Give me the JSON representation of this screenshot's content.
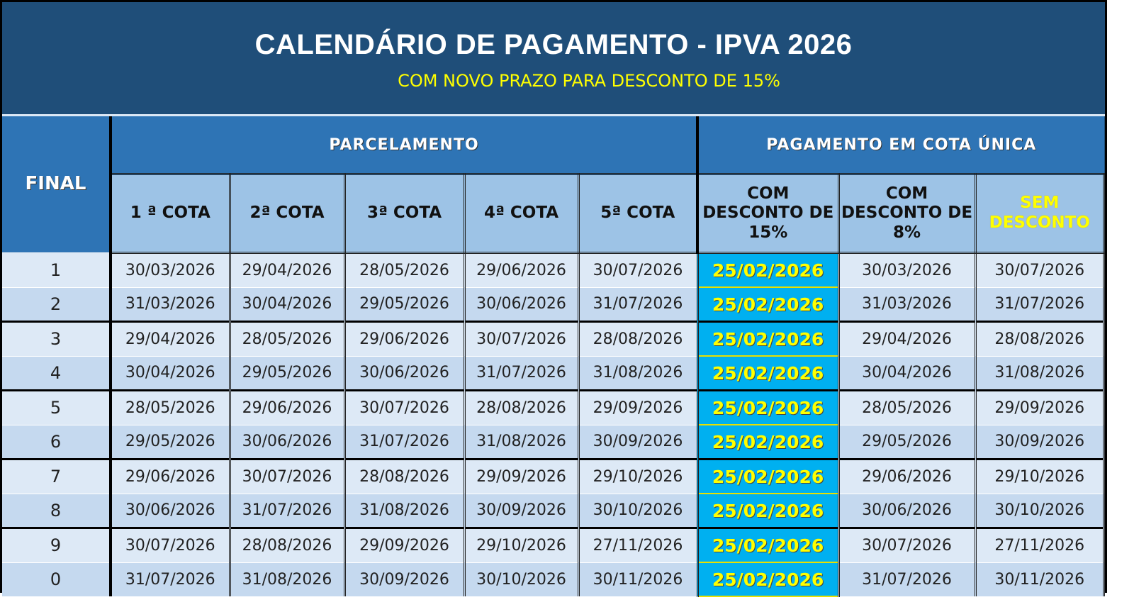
{
  "header": {
    "title": "CALENDÁRIO DE PAGAMENTO - IPVA 2026",
    "subtitle": "COM NOVO PRAZO PARA DESCONTO DE 15%"
  },
  "table": {
    "final_label": "FINAL",
    "group_parcelamento": "PARCELAMENTO",
    "group_cota_unica": "PAGAMENTO EM COTA ÚNICA",
    "columns": [
      "1 ª COTA",
      "2ª COTA",
      "3ª COTA",
      "4ª COTA",
      "5ª COTA",
      "COM DESCONTO DE 15%",
      "COM DESCONTO DE 8%",
      "SEM DESCONTO"
    ],
    "rows": [
      {
        "final": "1",
        "dates": [
          "30/03/2026",
          "29/04/2026",
          "28/05/2026",
          "29/06/2026",
          "30/07/2026",
          "25/02/2026",
          "30/03/2026",
          "30/07/2026"
        ]
      },
      {
        "final": "2",
        "dates": [
          "31/03/2026",
          "30/04/2026",
          "29/05/2026",
          "30/06/2026",
          "31/07/2026",
          "25/02/2026",
          "31/03/2026",
          "31/07/2026"
        ]
      },
      {
        "final": "3",
        "dates": [
          "29/04/2026",
          "28/05/2026",
          "29/06/2026",
          "30/07/2026",
          "28/08/2026",
          "25/02/2026",
          "29/04/2026",
          "28/08/2026"
        ]
      },
      {
        "final": "4",
        "dates": [
          "30/04/2026",
          "29/05/2026",
          "30/06/2026",
          "31/07/2026",
          "31/08/2026",
          "25/02/2026",
          "30/04/2026",
          "31/08/2026"
        ]
      },
      {
        "final": "5",
        "dates": [
          "28/05/2026",
          "29/06/2026",
          "30/07/2026",
          "28/08/2026",
          "29/09/2026",
          "25/02/2026",
          "28/05/2026",
          "29/09/2026"
        ]
      },
      {
        "final": "6",
        "dates": [
          "29/05/2026",
          "30/06/2026",
          "31/07/2026",
          "31/08/2026",
          "30/09/2026",
          "25/02/2026",
          "29/05/2026",
          "30/09/2026"
        ]
      },
      {
        "final": "7",
        "dates": [
          "29/06/2026",
          "30/07/2026",
          "28/08/2026",
          "29/09/2026",
          "29/10/2026",
          "25/02/2026",
          "29/06/2026",
          "29/10/2026"
        ]
      },
      {
        "final": "8",
        "dates": [
          "30/06/2026",
          "31/07/2026",
          "31/08/2026",
          "30/09/2026",
          "30/10/2026",
          "25/02/2026",
          "30/06/2026",
          "30/10/2026"
        ]
      },
      {
        "final": "9",
        "dates": [
          "30/07/2026",
          "28/08/2026",
          "29/09/2026",
          "29/10/2026",
          "27/11/2026",
          "25/02/2026",
          "30/07/2026",
          "27/11/2026"
        ]
      },
      {
        "final": "0",
        "dates": [
          "31/07/2026",
          "31/08/2026",
          "30/09/2026",
          "30/10/2026",
          "30/11/2026",
          "25/02/2026",
          "31/07/2026",
          "30/11/2026"
        ]
      }
    ]
  },
  "colors": {
    "title_bg": "#1f4e79",
    "group_bg": "#2e74b5",
    "subheader_bg": "#9dc3e6",
    "highlight_bg": "#00b0f0",
    "highlight_text": "#ffff00"
  }
}
